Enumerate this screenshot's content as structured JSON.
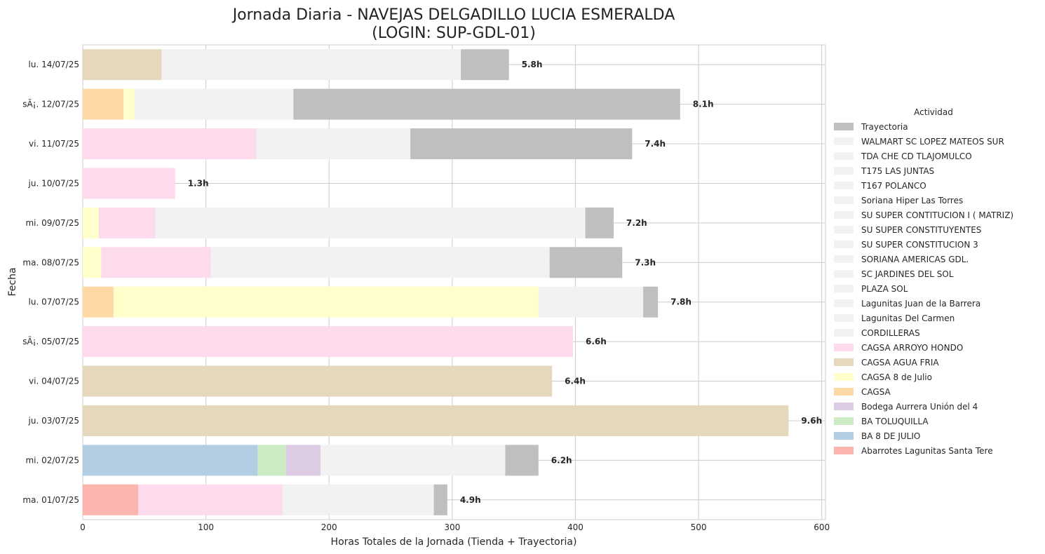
{
  "chart_data": {
    "type": "bar",
    "orientation": "horizontal",
    "stacked": true,
    "title_line1": "Jornada Diaria - NAVEJAS DELGADILLO LUCIA ESMERALDA",
    "title_line2": "(LOGIN: SUP-GDL-01)",
    "xlabel": "Horas Totales de la Jornada (Tienda + Trayectoria)",
    "ylabel": "Fecha",
    "xlim": [
      0,
      603
    ],
    "xticks": [
      0,
      100,
      200,
      300,
      400,
      500,
      600
    ],
    "grid": true,
    "legend_title": "Actividad",
    "legend_position": "right",
    "categories": [
      "lu. 14/07/25",
      "sÃ¡. 12/07/25",
      "vi. 11/07/25",
      "ju. 10/07/25",
      "mi. 09/07/25",
      "ma. 08/07/25",
      "lu. 07/07/25",
      "sÃ¡. 05/07/25",
      "vi. 04/07/25",
      "ju. 03/07/25",
      "mi. 02/07/25",
      "ma. 01/07/25"
    ],
    "totals_labels": [
      "5.8h",
      "8.1h",
      "7.4h",
      "1.3h",
      "7.2h",
      "7.3h",
      "7.8h",
      "6.6h",
      "6.4h",
      "9.6h",
      "6.2h",
      "4.9h"
    ],
    "legend": [
      {
        "name": "Trayectoria",
        "color": "#bfbfbf"
      },
      {
        "name": "WALMART SC LOPEZ MATEOS SUR",
        "color": "#f2f2f2"
      },
      {
        "name": "TDA CHE CD TLAJOMULCO",
        "color": "#f2f2f2"
      },
      {
        "name": "T175 LAS JUNTAS",
        "color": "#f2f2f2"
      },
      {
        "name": "T167 POLANCO",
        "color": "#f2f2f2"
      },
      {
        "name": "Soriana Hiper Las Torres",
        "color": "#f2f2f2"
      },
      {
        "name": "SU SUPER CONTITUCION I ( MATRIZ)",
        "color": "#f2f2f2"
      },
      {
        "name": "SU SUPER CONSTITUYENTES",
        "color": "#f2f2f2"
      },
      {
        "name": "SU SUPER CONSTITUCION 3",
        "color": "#f2f2f2"
      },
      {
        "name": "SORIANA AMERICAS GDL.",
        "color": "#f2f2f2"
      },
      {
        "name": "SC JARDINES DEL SOL",
        "color": "#f2f2f2"
      },
      {
        "name": "PLAZA SOL",
        "color": "#f2f2f2"
      },
      {
        "name": "Lagunitas Juan de la Barrera",
        "color": "#f2f2f2"
      },
      {
        "name": "Lagunitas Del Carmen",
        "color": "#f2f2f2"
      },
      {
        "name": "CORDILLERAS",
        "color": "#f2f2f2"
      },
      {
        "name": "CAGSA ARROYO HONDO",
        "color": "#fddaec"
      },
      {
        "name": "CAGSA AGUA FRIA",
        "color": "#e5d8bd"
      },
      {
        "name": "CAGSA 8 de Julio",
        "color": "#ffffcc"
      },
      {
        "name": "CAGSA",
        "color": "#fed9a6"
      },
      {
        "name": "Bodega Aurrera Unión del 4",
        "color": "#decbe4"
      },
      {
        "name": "BA TOLUQUILLA",
        "color": "#ccebc5"
      },
      {
        "name": "BA 8 DE JULIO",
        "color": "#b3cde3"
      },
      {
        "name": "Abarrotes Lagunitas Santa Tere",
        "color": "#fbb4ae"
      }
    ],
    "bars": [
      {
        "segments": [
          {
            "value": 64,
            "color": "#e5d8bd"
          },
          {
            "value": 243,
            "color": "#f2f2f2"
          },
          {
            "value": 39,
            "color": "#bfbfbf"
          }
        ]
      },
      {
        "segments": [
          {
            "value": 33,
            "color": "#fed9a6"
          },
          {
            "value": 9,
            "color": "#ffffcc"
          },
          {
            "value": 129,
            "color": "#f2f2f2"
          },
          {
            "value": 314,
            "color": "#bfbfbf"
          }
        ]
      },
      {
        "segments": [
          {
            "value": 141,
            "color": "#fddaec"
          },
          {
            "value": 125,
            "color": "#f2f2f2"
          },
          {
            "value": 180,
            "color": "#bfbfbf"
          }
        ]
      },
      {
        "segments": [
          {
            "value": 75,
            "color": "#fddaec"
          }
        ]
      },
      {
        "segments": [
          {
            "value": 13,
            "color": "#ffffcc"
          },
          {
            "value": 46,
            "color": "#fddaec"
          },
          {
            "value": 349,
            "color": "#f2f2f2"
          },
          {
            "value": 23,
            "color": "#bfbfbf"
          }
        ]
      },
      {
        "segments": [
          {
            "value": 15,
            "color": "#ffffcc"
          },
          {
            "value": 89,
            "color": "#fddaec"
          },
          {
            "value": 275,
            "color": "#f2f2f2"
          },
          {
            "value": 59,
            "color": "#bfbfbf"
          }
        ]
      },
      {
        "segments": [
          {
            "value": 25,
            "color": "#fed9a6"
          },
          {
            "value": 345,
            "color": "#ffffcc"
          },
          {
            "value": 85,
            "color": "#f2f2f2"
          },
          {
            "value": 12,
            "color": "#bfbfbf"
          }
        ]
      },
      {
        "segments": [
          {
            "value": 398,
            "color": "#fddaec"
          }
        ]
      },
      {
        "segments": [
          {
            "value": 381,
            "color": "#e5d8bd"
          }
        ]
      },
      {
        "segments": [
          {
            "value": 573,
            "color": "#e5d8bd"
          }
        ]
      },
      {
        "segments": [
          {
            "value": 142,
            "color": "#b3cde3"
          },
          {
            "value": 23,
            "color": "#ccebc5"
          },
          {
            "value": 28,
            "color": "#decbe4"
          },
          {
            "value": 150,
            "color": "#f2f2f2"
          },
          {
            "value": 27,
            "color": "#bfbfbf"
          }
        ]
      },
      {
        "segments": [
          {
            "value": 45,
            "color": "#fbb4ae"
          },
          {
            "value": 117,
            "color": "#fddaec"
          },
          {
            "value": 123,
            "color": "#f2f2f2"
          },
          {
            "value": 11,
            "color": "#bfbfbf"
          }
        ]
      }
    ]
  }
}
